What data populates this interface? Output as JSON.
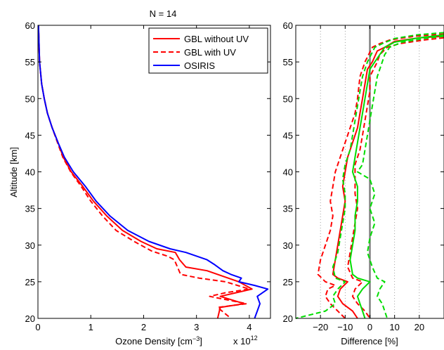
{
  "chart_data": [
    {
      "type": "line",
      "title": "N = 14",
      "xlabel": "Ozone Density [cm",
      "xlabel_sup": "−3",
      "xlabel_end": "]",
      "x_multiplier": "x 10",
      "x_multiplier_exp": "12",
      "ylabel": "Altitude [km]",
      "xlim": [
        0,
        4.4
      ],
      "ylim": [
        20,
        60
      ],
      "xticks": [
        0,
        1,
        2,
        3,
        4
      ],
      "yticks": [
        20,
        25,
        30,
        35,
        40,
        45,
        50,
        55,
        60
      ],
      "grid": false,
      "legend_position": "top-right",
      "legend": [
        {
          "label": "GBL without UV",
          "color": "#ff0000",
          "dash": "solid"
        },
        {
          "label": "GBL with UV",
          "color": "#ff0000",
          "dash": "dashed"
        },
        {
          "label": "OSIRIS",
          "color": "#0000ff",
          "dash": "solid"
        }
      ],
      "series": [
        {
          "name": "GBL without UV",
          "color": "#ff0000",
          "dash": "solid",
          "points": [
            [
              0.01,
              60
            ],
            [
              0.03,
              55
            ],
            [
              0.07,
              52
            ],
            [
              0.12,
              50
            ],
            [
              0.18,
              48
            ],
            [
              0.27,
              46
            ],
            [
              0.38,
              44
            ],
            [
              0.48,
              42
            ],
            [
              0.63,
              40
            ],
            [
              0.85,
              38
            ],
            [
              1.05,
              36
            ],
            [
              1.3,
              34
            ],
            [
              1.6,
              32
            ],
            [
              1.95,
              30.5
            ],
            [
              2.25,
              29.5
            ],
            [
              2.6,
              29
            ],
            [
              2.68,
              28
            ],
            [
              2.8,
              27
            ],
            [
              3.2,
              26.5
            ],
            [
              3.8,
              25
            ],
            [
              4.05,
              24
            ],
            [
              3.75,
              23.5
            ],
            [
              3.45,
              23
            ],
            [
              3.9,
              22
            ],
            [
              3.45,
              21.5
            ],
            [
              3.4,
              20
            ]
          ]
        },
        {
          "name": "GBL with UV",
          "color": "#ff0000",
          "dash": "dashed",
          "points": [
            [
              0.01,
              60
            ],
            [
              0.03,
              55
            ],
            [
              0.07,
              52
            ],
            [
              0.12,
              50
            ],
            [
              0.18,
              48
            ],
            [
              0.27,
              46
            ],
            [
              0.37,
              44
            ],
            [
              0.47,
              42
            ],
            [
              0.62,
              40
            ],
            [
              0.82,
              38
            ],
            [
              1.0,
              36
            ],
            [
              1.22,
              34
            ],
            [
              1.48,
              32
            ],
            [
              1.82,
              30.5
            ],
            [
              2.15,
              29.2
            ],
            [
              2.45,
              28.5
            ],
            [
              2.58,
              28
            ],
            [
              2.7,
              26
            ],
            [
              3.05,
              25.5
            ],
            [
              3.55,
              25
            ],
            [
              4.0,
              24
            ],
            [
              3.55,
              23.5
            ],
            [
              3.25,
              23
            ],
            [
              3.95,
              22
            ],
            [
              3.4,
              21.5
            ],
            [
              3.65,
              20
            ]
          ]
        },
        {
          "name": "OSIRIS",
          "color": "#0000ff",
          "dash": "solid",
          "points": [
            [
              0.01,
              60
            ],
            [
              0.03,
              55
            ],
            [
              0.07,
              52
            ],
            [
              0.12,
              50
            ],
            [
              0.18,
              48
            ],
            [
              0.27,
              46
            ],
            [
              0.38,
              44
            ],
            [
              0.5,
              42
            ],
            [
              0.67,
              40
            ],
            [
              0.9,
              38
            ],
            [
              1.1,
              36
            ],
            [
              1.36,
              34
            ],
            [
              1.7,
              32
            ],
            [
              2.1,
              30.5
            ],
            [
              2.5,
              29.5
            ],
            [
              2.8,
              29
            ],
            [
              3.2,
              28
            ],
            [
              3.35,
              27.3
            ],
            [
              3.5,
              26.5
            ],
            [
              3.65,
              26
            ],
            [
              3.85,
              25.5
            ],
            [
              3.8,
              25
            ],
            [
              4.1,
              24.5
            ],
            [
              4.35,
              24
            ],
            [
              4.15,
              23
            ],
            [
              4.2,
              22
            ],
            [
              4.15,
              21
            ],
            [
              4.1,
              20
            ]
          ]
        }
      ]
    },
    {
      "type": "line",
      "xlabel": "Difference [%]",
      "xlim": [
        -30,
        30
      ],
      "ylim": [
        20,
        60
      ],
      "xticks": [
        -20,
        -10,
        0,
        10,
        20
      ],
      "xtick_labels": [
        "−20",
        "−10",
        "0",
        "10",
        "20"
      ],
      "yticks": [
        20,
        25,
        30,
        35,
        40,
        45,
        50,
        55,
        60
      ],
      "grid": "vertical dotted",
      "zero_line_color": "#808080",
      "series": [
        {
          "color": "#ff0000",
          "dash": "solid",
          "points": [
            [
              30,
              58.5
            ],
            [
              20,
              58.3
            ],
            [
              10,
              57.8
            ],
            [
              6,
              57
            ],
            [
              3,
              56.5
            ],
            [
              1,
              55
            ],
            [
              -1,
              54
            ],
            [
              -2,
              52
            ],
            [
              -3,
              50
            ],
            [
              -4,
              48
            ],
            [
              -5,
              46
            ],
            [
              -7,
              44
            ],
            [
              -9,
              42
            ],
            [
              -10,
              40
            ],
            [
              -11,
              38
            ],
            [
              -10,
              36
            ],
            [
              -11,
              34
            ],
            [
              -12,
              32
            ],
            [
              -13,
              30
            ],
            [
              -14,
              28
            ],
            [
              -15,
              26
            ],
            [
              -13,
              25.5
            ],
            [
              -9,
              25
            ],
            [
              -12,
              24
            ],
            [
              -13,
              23
            ],
            [
              -11,
              22
            ],
            [
              -7,
              21
            ],
            [
              -5,
              20
            ]
          ]
        },
        {
          "color": "#ff0000",
          "dash": "dashed",
          "points": [
            [
              30,
              58.8
            ],
            [
              18,
              58.5
            ],
            [
              8,
              58
            ],
            [
              4,
              57.5
            ],
            [
              1,
              57
            ],
            [
              -2,
              55
            ],
            [
              -4,
              53
            ],
            [
              -5,
              50
            ],
            [
              -6,
              48
            ],
            [
              -8,
              46
            ],
            [
              -10,
              44
            ],
            [
              -12,
              42
            ],
            [
              -14,
              40
            ],
            [
              -15,
              38
            ],
            [
              -16,
              36
            ],
            [
              -15,
              34
            ],
            [
              -16,
              32
            ],
            [
              -18,
              30
            ],
            [
              -20,
              28
            ],
            [
              -21,
              26
            ],
            [
              -18,
              25
            ],
            [
              -14,
              24.5
            ],
            [
              -17,
              24
            ],
            [
              -18,
              23
            ],
            [
              -16,
              22
            ],
            [
              -13,
              21
            ],
            [
              -10,
              20
            ]
          ]
        },
        {
          "color": "#ff0000",
          "dash": "dashed",
          "points": [
            [
              30,
              58.3
            ],
            [
              22,
              58
            ],
            [
              12,
              57.5
            ],
            [
              7,
              57
            ],
            [
              4,
              56
            ],
            [
              3,
              55
            ],
            [
              0,
              53
            ],
            [
              0,
              51
            ],
            [
              -1,
              49
            ],
            [
              -2,
              47
            ],
            [
              -3,
              45
            ],
            [
              -4,
              43
            ],
            [
              -6,
              41
            ],
            [
              -6,
              39
            ],
            [
              -6,
              37
            ],
            [
              -5,
              35
            ],
            [
              -6,
              33
            ],
            [
              -7,
              31
            ],
            [
              -8,
              29
            ],
            [
              -9,
              27
            ],
            [
              -7,
              25.5
            ],
            [
              -3,
              25
            ],
            [
              -6,
              24
            ],
            [
              -7,
              23
            ],
            [
              -5,
              22
            ],
            [
              -2,
              21
            ],
            [
              0,
              20
            ]
          ]
        },
        {
          "color": "#00dd00",
          "dash": "solid",
          "points": [
            [
              30,
              58.7
            ],
            [
              20,
              58.3
            ],
            [
              10,
              57.7
            ],
            [
              6,
              57
            ],
            [
              4,
              56
            ],
            [
              2,
              55
            ],
            [
              0,
              54
            ],
            [
              -1,
              52
            ],
            [
              -2,
              50
            ],
            [
              -3,
              48
            ],
            [
              -4,
              46
            ],
            [
              -5,
              44
            ],
            [
              -6,
              42
            ],
            [
              -7,
              40
            ],
            [
              -5,
              38
            ],
            [
              -5,
              36
            ],
            [
              -6,
              34
            ],
            [
              -6,
              32
            ],
            [
              -7,
              30
            ],
            [
              -8,
              28
            ],
            [
              -7,
              26
            ],
            [
              -5,
              25.5
            ],
            [
              0,
              25
            ],
            [
              -3,
              24
            ],
            [
              -5,
              23
            ],
            [
              -4,
              22
            ],
            [
              -3,
              21
            ],
            [
              -2,
              20
            ]
          ]
        },
        {
          "color": "#00dd00",
          "dash": "dashed",
          "points": [
            [
              30,
              59
            ],
            [
              19,
              58.7
            ],
            [
              10,
              58.2
            ],
            [
              5,
              57.5
            ],
            [
              2,
              57
            ],
            [
              -1,
              55
            ],
            [
              -3,
              53
            ],
            [
              -4,
              51
            ],
            [
              -5,
              49
            ],
            [
              -6,
              47
            ],
            [
              -7,
              45
            ],
            [
              -8,
              43
            ],
            [
              -10,
              41
            ],
            [
              -11,
              39
            ],
            [
              -10,
              37
            ],
            [
              -10,
              35
            ],
            [
              -11,
              33
            ],
            [
              -12,
              31
            ],
            [
              -13,
              29
            ],
            [
              -15,
              27
            ],
            [
              -14,
              25.5
            ],
            [
              -10,
              25
            ],
            [
              -13,
              24
            ],
            [
              -15,
              23
            ],
            [
              -14,
              22
            ],
            [
              -18,
              21
            ],
            [
              -30,
              20
            ]
          ]
        },
        {
          "color": "#00dd00",
          "dash": "dashed",
          "points": [
            [
              30,
              58.5
            ],
            [
              22,
              58.2
            ],
            [
              13,
              57.7
            ],
            [
              8,
              57
            ],
            [
              6,
              56
            ],
            [
              5,
              55
            ],
            [
              3,
              53
            ],
            [
              2,
              51
            ],
            [
              1,
              49
            ],
            [
              0,
              47
            ],
            [
              -1,
              45
            ],
            [
              -2,
              43
            ],
            [
              -3,
              41
            ],
            [
              -5,
              40
            ],
            [
              0,
              39
            ],
            [
              2,
              37
            ],
            [
              0,
              35
            ],
            [
              2,
              33
            ],
            [
              0,
              31
            ],
            [
              -1,
              29
            ],
            [
              1,
              27
            ],
            [
              3,
              25.5
            ],
            [
              6,
              25
            ],
            [
              4,
              24
            ],
            [
              3,
              23
            ],
            [
              5,
              22
            ],
            [
              6,
              21
            ],
            [
              7,
              20
            ]
          ]
        }
      ]
    }
  ]
}
